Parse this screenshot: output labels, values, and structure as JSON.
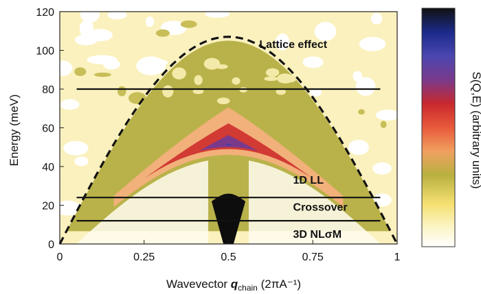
{
  "chart_data": {
    "type": "heatmap",
    "xlabel": {
      "prefix": "Wavevector ",
      "q": "q",
      "sub": "chain",
      "suffix": " (2πA⁻¹)"
    },
    "ylabel": "Energy (meV)",
    "colorbar_label": "S(Q,E) (arbitrary units)",
    "xlim": [
      0,
      1
    ],
    "ylim": [
      0,
      120
    ],
    "x_ticks": [
      0,
      0.25,
      0.5,
      0.75,
      1
    ],
    "x_tick_labels": [
      "0",
      "0.25",
      "0.5",
      "0.75",
      "1"
    ],
    "y_ticks": [
      0,
      20,
      40,
      60,
      80,
      100,
      120
    ],
    "y_tick_labels": [
      "0",
      "20",
      "40",
      "60",
      "80",
      "100",
      "120"
    ],
    "colorbar_colors": [
      "#111111",
      "#1b2a8a",
      "#4a46b0",
      "#7a3a8c",
      "#c8282e",
      "#e85a3a",
      "#f0a060",
      "#b8b040",
      "#f5e070",
      "#fbf5c8",
      "#ffffff"
    ],
    "region_labels": [
      {
        "text": "Lattice effect",
        "x": 0.62,
        "y": 103
      },
      {
        "text": "1D LL",
        "x": 0.72,
        "y": 33
      },
      {
        "text": "Crossover",
        "x": 0.72,
        "y": 19
      },
      {
        "text": "3D NLσM",
        "x": 0.72,
        "y": 5
      }
    ],
    "reference_lines": [
      {
        "y": 80,
        "x": [
          0.05,
          0.95
        ]
      },
      {
        "y": 24,
        "x": [
          0.05,
          0.95
        ]
      },
      {
        "y": 12,
        "x": [
          0.05,
          0.95
        ]
      }
    ],
    "dashed_curve": {
      "amplitude_meV": 107,
      "x_range": [
        0,
        1
      ]
    },
    "spinon_continuum": {
      "lower_amplitude_meV": 52,
      "upper_amplitude_meV": 78
    }
  }
}
